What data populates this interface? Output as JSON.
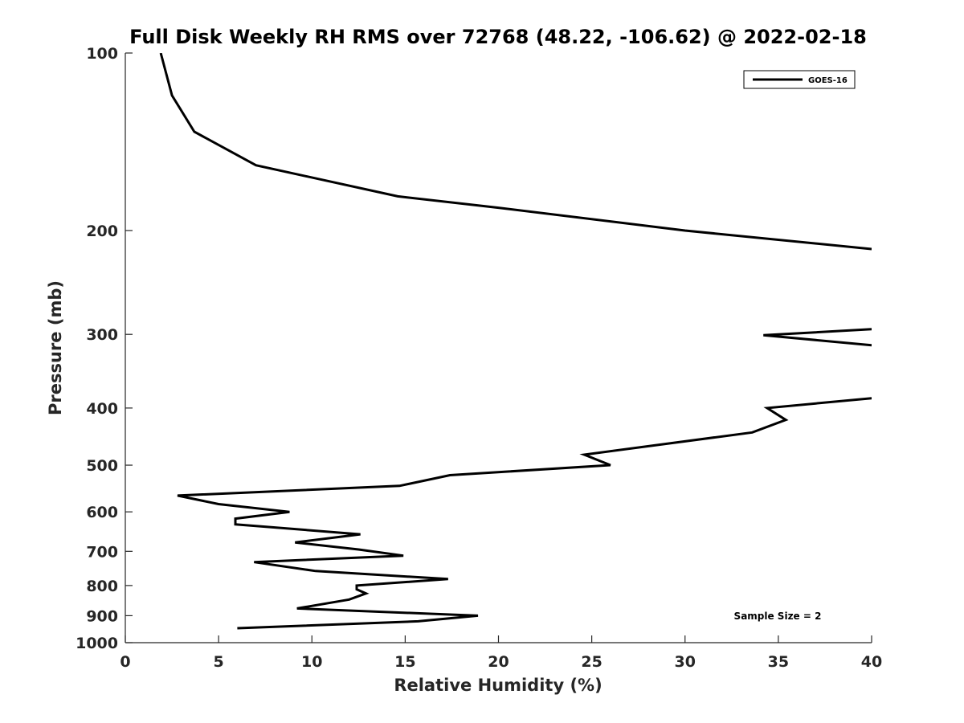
{
  "chart_data": {
    "type": "line",
    "title": "Full Disk Weekly RH RMS over 72768 (48.22, -106.62) @ 2022-02-18",
    "xlabel": "Relative Humidity (%)",
    "ylabel": "Pressure (mb)",
    "xlim": [
      0,
      40
    ],
    "ylim": [
      100,
      1000
    ],
    "y_scale": "log",
    "y_reversed": true,
    "xticks": [
      0,
      5,
      10,
      15,
      20,
      25,
      30,
      35,
      40
    ],
    "yticks": [
      100,
      200,
      300,
      400,
      500,
      600,
      700,
      800,
      900,
      1000
    ],
    "grid": false,
    "legend_position": "top-right",
    "annotation": "Sample Size = 2",
    "series": [
      {
        "name": "GOES-16",
        "color": "#000000",
        "points": [
          [
            1.9,
            100
          ],
          [
            2.5,
            118
          ],
          [
            3.7,
            136
          ],
          [
            7.0,
            155
          ],
          [
            14.6,
            175
          ],
          [
            20.0,
            183
          ],
          [
            30.0,
            200
          ],
          [
            40.0,
            215
          ],
          null,
          [
            40.0,
            294
          ],
          [
            34.2,
            301
          ],
          [
            40.0,
            313
          ],
          null,
          [
            40.0,
            385
          ],
          [
            34.4,
            400
          ],
          [
            35.4,
            419
          ],
          [
            33.6,
            440
          ],
          [
            24.6,
            480
          ],
          [
            26.0,
            500
          ],
          [
            17.4,
            520
          ],
          [
            14.7,
            542
          ],
          [
            2.8,
            563
          ],
          [
            5.0,
            582
          ],
          [
            8.8,
            600
          ],
          [
            5.9,
            616
          ],
          [
            5.9,
            630
          ],
          [
            12.6,
            655
          ],
          [
            9.1,
            676
          ],
          [
            12.5,
            695
          ],
          [
            14.9,
            712
          ],
          [
            6.9,
            730
          ],
          [
            10.2,
            756
          ],
          [
            17.3,
            780
          ],
          [
            12.4,
            800
          ],
          [
            12.4,
            812
          ],
          [
            12.9,
            825
          ],
          [
            12.0,
            845
          ],
          [
            9.2,
            875
          ],
          [
            18.9,
            900
          ],
          [
            15.7,
            920
          ],
          [
            6.0,
            945
          ]
        ]
      }
    ]
  }
}
